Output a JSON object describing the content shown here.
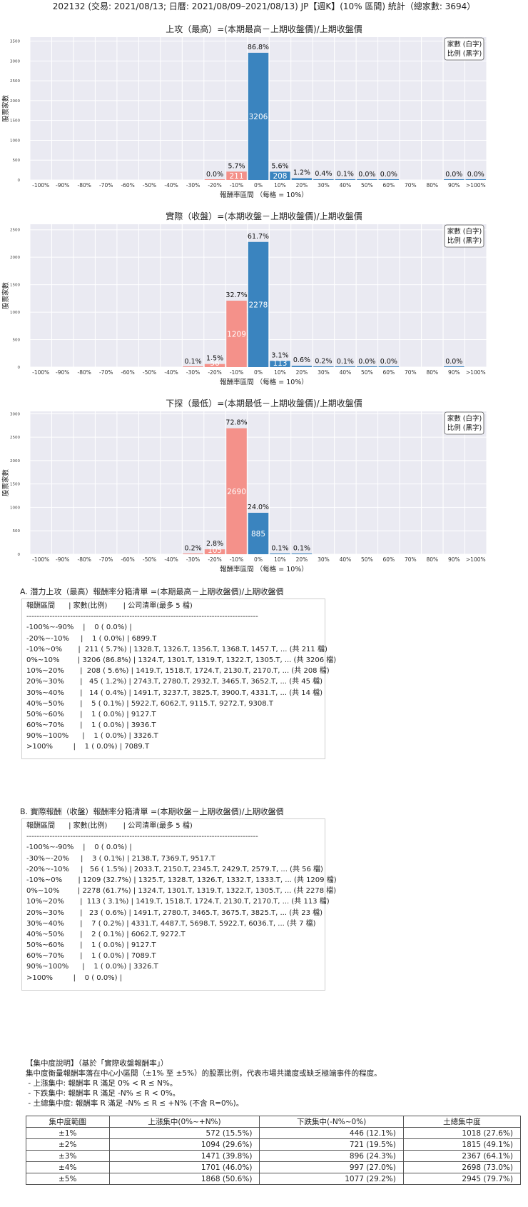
{
  "title": "202132 (交易: 2021/08/13; 日曆: 2021/08/09–2021/08/13) JP【週K】(10% 區間) 統計（總家數: 3694）",
  "legend": {
    "line1": "家數 (白字)",
    "line2": "比例 (黑字)"
  },
  "colors": {
    "negative": "#f4918a",
    "positive": "#3a84bf",
    "plot_bg": "#eaeaf2"
  },
  "chart_data": [
    {
      "type": "bar",
      "title": "上攻（最高）=(本期最高－上期收盤價)/上期收盤價",
      "xlabel": "報酬率區間 （每格 = 10%）",
      "ylabel": "股票家數",
      "categories": [
        "-100%",
        "-90%",
        "-80%",
        "-70%",
        "-60%",
        "-50%",
        "-40%",
        "-30%",
        "-20%",
        "-10%",
        "0%",
        "10%",
        "20%",
        "30%",
        "40%",
        "50%",
        "60%",
        "70%",
        "80%",
        "90%",
        ">100%"
      ],
      "counts": [
        0,
        0,
        0,
        0,
        0,
        0,
        0,
        0,
        1,
        211,
        3206,
        208,
        45,
        14,
        5,
        1,
        1,
        0,
        0,
        1,
        1
      ],
      "pct_labels": [
        "",
        "",
        "",
        "",
        "",
        "",
        "",
        "",
        "0.0%",
        "5.7%",
        "86.8%",
        "5.6%",
        "1.2%",
        "0.4%",
        "0.1%",
        "0.0%",
        "0.0%",
        "",
        "",
        "0.0%",
        "0.0%"
      ],
      "count_labels": [
        "",
        "",
        "",
        "",
        "",
        "",
        "",
        "",
        "",
        "211",
        "3206",
        "208",
        "",
        "",
        "",
        "",
        "",
        "",
        "",
        "",
        ""
      ],
      "yticks": [
        0,
        500,
        1000,
        1500,
        2000,
        2500,
        3000,
        3500
      ],
      "ylim": [
        0,
        3600
      ]
    },
    {
      "type": "bar",
      "title": "實際（收盤）=(本期收盤－上期收盤價)/上期收盤價",
      "xlabel": "報酬率區間 （每格 = 10%）",
      "ylabel": "股票家數",
      "categories": [
        "-100%",
        "-90%",
        "-80%",
        "-70%",
        "-60%",
        "-50%",
        "-40%",
        "-30%",
        "-20%",
        "-10%",
        "0%",
        "10%",
        "20%",
        "30%",
        "40%",
        "50%",
        "60%",
        "70%",
        "80%",
        "90%",
        ">100%"
      ],
      "counts": [
        0,
        0,
        0,
        0,
        0,
        0,
        0,
        3,
        56,
        1209,
        2278,
        113,
        23,
        7,
        2,
        1,
        1,
        0,
        0,
        1,
        0
      ],
      "pct_labels": [
        "",
        "",
        "",
        "",
        "",
        "",
        "",
        "0.1%",
        "1.5%",
        "32.7%",
        "61.7%",
        "3.1%",
        "0.6%",
        "0.2%",
        "0.1%",
        "0.0%",
        "0.0%",
        "",
        "",
        "0.0%",
        ""
      ],
      "count_labels": [
        "",
        "",
        "",
        "",
        "",
        "",
        "",
        "",
        "56",
        "1209",
        "2278",
        "113",
        "",
        "",
        "",
        "",
        "",
        "",
        "",
        "",
        ""
      ],
      "yticks": [
        0,
        500,
        1000,
        1500,
        2000,
        2500
      ],
      "ylim": [
        0,
        2600
      ]
    },
    {
      "type": "bar",
      "title": "下探（最低）=(本期最低－上期收盤價)/上期收盤價",
      "xlabel": "報酬率區間 （每格 = 10%）",
      "ylabel": "股票家數",
      "categories": [
        "-100%",
        "-90%",
        "-80%",
        "-70%",
        "-60%",
        "-50%",
        "-40%",
        "-30%",
        "-20%",
        "-10%",
        "0%",
        "10%",
        "20%",
        "30%",
        "40%",
        "50%",
        "60%",
        "70%",
        "80%",
        "90%",
        ">100%"
      ],
      "counts": [
        0,
        0,
        0,
        0,
        0,
        0,
        0,
        6,
        105,
        2690,
        885,
        4,
        4,
        0,
        0,
        0,
        0,
        0,
        0,
        0,
        0
      ],
      "pct_labels": [
        "",
        "",
        "",
        "",
        "",
        "",
        "",
        "0.2%",
        "2.8%",
        "72.8%",
        "24.0%",
        "0.1%",
        "0.1%",
        "",
        "",
        "",
        "",
        "",
        "",
        "",
        ""
      ],
      "count_labels": [
        "",
        "",
        "",
        "",
        "",
        "",
        "",
        "",
        "105",
        "2690",
        "885",
        "",
        "",
        "",
        "",
        "",
        "",
        "",
        "",
        "",
        ""
      ],
      "yticks": [
        0,
        500,
        1000,
        1500,
        2000,
        2500,
        3000
      ],
      "ylim": [
        0,
        3050
      ]
    }
  ],
  "sectionA": {
    "title": "A. 潛力上攻（最高）報酬率分箱清單 =(本期最高－上期收盤價)/上期收盤價",
    "lines": [
      "報酬區間      | 家數(比例)       | 公司清單(最多 5 檔)",
      "------------------------------------------------------------------------------------------",
      "-100%~-90%    |    0 ( 0.0%) |",
      "-20%~-10%     |    1 ( 0.0%) | 6899.T",
      "-10%~0%       |  211 ( 5.7%) | 1328.T, 1326.T, 1356.T, 1368.T, 1457.T, ... (共 211 檔)",
      "0%~10%        | 3206 (86.8%) | 1324.T, 1301.T, 1319.T, 1322.T, 1305.T, ... (共 3206 檔)",
      "10%~20%       |  208 ( 5.6%) | 1419.T, 1518.T, 1724.T, 2130.T, 2170.T, ... (共 208 檔)",
      "20%~30%       |   45 ( 1.2%) | 2743.T, 2780.T, 2932.T, 3465.T, 3652.T, ... (共 45 檔)",
      "30%~40%       |   14 ( 0.4%) | 1491.T, 3237.T, 3825.T, 3900.T, 4331.T, ... (共 14 檔)",
      "40%~50%       |    5 ( 0.1%) | 5922.T, 6062.T, 9115.T, 9272.T, 9308.T",
      "50%~60%       |    1 ( 0.0%) | 9127.T",
      "60%~70%       |    1 ( 0.0%) | 3936.T",
      "90%~100%      |    1 ( 0.0%) | 3326.T",
      ">100%         |    1 ( 0.0%) | 7089.T"
    ]
  },
  "sectionB": {
    "title": "B. 實際報酬（收盤）報酬率分箱清單 =(本期收盤－上期收盤價)/上期收盤價",
    "lines": [
      "報酬區間      | 家數(比例)       | 公司清單(最多 5 檔)",
      "------------------------------------------------------------------------------------------",
      "-100%~-90%    |    0 ( 0.0%) |",
      "-30%~-20%     |    3 ( 0.1%) | 2138.T, 7369.T, 9517.T",
      "-20%~-10%     |   56 ( 1.5%) | 2033.T, 2150.T, 2345.T, 2429.T, 2579.T, ... (共 56 檔)",
      "-10%~0%       | 1209 (32.7%) | 1325.T, 1328.T, 1326.T, 1332.T, 1333.T, ... (共 1209 檔)",
      "0%~10%        | 2278 (61.7%) | 1324.T, 1301.T, 1319.T, 1322.T, 1305.T, ... (共 2278 檔)",
      "10%~20%       |  113 ( 3.1%) | 1419.T, 1518.T, 1724.T, 2130.T, 2170.T, ... (共 113 檔)",
      "20%~30%       |   23 ( 0.6%) | 1491.T, 2780.T, 3465.T, 3675.T, 3825.T, ... (共 23 檔)",
      "30%~40%       |    7 ( 0.2%) | 4331.T, 4487.T, 5698.T, 5922.T, 6036.T, ... (共 7 檔)",
      "40%~50%       |    2 ( 0.1%) | 6062.T, 9272.T",
      "50%~60%       |    1 ( 0.0%) | 9127.T",
      "60%~70%       |    1 ( 0.0%) | 7089.T",
      "90%~100%      |    1 ( 0.0%) | 3326.T",
      ">100%         |    0 ( 0.0%) |"
    ]
  },
  "concentration": {
    "note_lines": [
      "【集中度說明】（基於「實際收盤報酬率」）",
      "集中度衡量報酬率落在中心小區間（±1% 至 ±5%）的股票比例，代表市場共識度或缺乏極端事件的程度。",
      " - 上漲集中: 報酬率 R 滿足 0% < R ≤ N%。",
      " - 下跌集中: 報酬率 R 滿足 -N% ≤ R < 0%。",
      " - 土總集中度: 報酬率 R 滿足 -N% ≤ R ≤ +N% (不含 R=0%)。"
    ],
    "headers": [
      "集中度範圍",
      "上漲集中(0%~+N%)",
      "下跌集中(-N%~0%)",
      "土總集中度"
    ],
    "rows": [
      [
        "±1%",
        "572 (15.5%)",
        "446 (12.1%)",
        "1018 (27.6%)"
      ],
      [
        "±2%",
        "1094 (29.6%)",
        "721 (19.5%)",
        "1815 (49.1%)"
      ],
      [
        "±3%",
        "1471 (39.8%)",
        "896 (24.3%)",
        "2367 (64.1%)"
      ],
      [
        "±4%",
        "1701 (46.0%)",
        "997 (27.0%)",
        "2698 (73.0%)"
      ],
      [
        "±5%",
        "1868 (50.6%)",
        "1077 (29.2%)",
        "2945 (79.7%)"
      ]
    ]
  }
}
